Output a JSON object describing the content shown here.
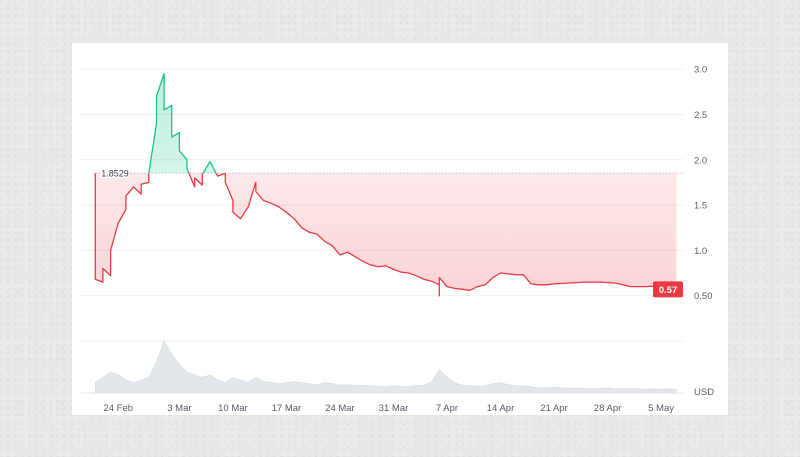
{
  "chart_data": {
    "type": "area",
    "title": "",
    "xlabel": "",
    "ylabel": "",
    "currency_label": "USD",
    "reference_value": 1.8529,
    "reference_label": "1.8529",
    "current_value": 0.57,
    "current_label": "0.57",
    "ylim": [
      0.0,
      3.2
    ],
    "y_ticks": [
      {
        "value": 3.0,
        "label": "3.0"
      },
      {
        "value": 2.5,
        "label": "2.5"
      },
      {
        "value": 2.0,
        "label": "2.0"
      },
      {
        "value": 1.5,
        "label": "1.5"
      },
      {
        "value": 1.0,
        "label": "1.0"
      },
      {
        "value": 0.5,
        "label": "0.50"
      }
    ],
    "x_domain": [
      "2024-02-19",
      "2024-05-08"
    ],
    "x_ticks": [
      {
        "date": "2024-02-24",
        "label": "24 Feb"
      },
      {
        "date": "2024-03-03",
        "label": "3 Mar"
      },
      {
        "date": "2024-03-10",
        "label": "10 Mar"
      },
      {
        "date": "2024-03-17",
        "label": "17 Mar"
      },
      {
        "date": "2024-03-24",
        "label": "24 Mar"
      },
      {
        "date": "2024-03-31",
        "label": "31 Mar"
      },
      {
        "date": "2024-04-07",
        "label": "7 Apr"
      },
      {
        "date": "2024-04-14",
        "label": "14 Apr"
      },
      {
        "date": "2024-04-21",
        "label": "21 Apr"
      },
      {
        "date": "2024-04-28",
        "label": "28 Apr"
      },
      {
        "date": "2024-05-05",
        "label": "5 May"
      }
    ],
    "series": [
      {
        "values": [
          [
            "2024-02-21",
            1.85
          ],
          [
            "2024-02-21",
            1.1
          ],
          [
            "2024-02-21",
            0.68
          ],
          [
            "2024-02-22",
            0.65
          ],
          [
            "2024-02-22",
            0.8
          ],
          [
            "2024-02-23",
            0.72
          ],
          [
            "2024-02-23",
            1.0
          ],
          [
            "2024-02-24",
            1.3
          ],
          [
            "2024-02-25",
            1.45
          ],
          [
            "2024-02-25",
            1.6
          ],
          [
            "2024-02-26",
            1.7
          ],
          [
            "2024-02-27",
            1.62
          ],
          [
            "2024-02-27",
            1.73
          ],
          [
            "2024-02-28",
            1.75
          ],
          [
            "2024-02-28",
            1.85
          ],
          [
            "2024-02-29",
            2.4
          ],
          [
            "2024-02-29",
            2.7
          ],
          [
            "2024-03-01",
            2.95
          ],
          [
            "2024-03-01",
            2.55
          ],
          [
            "2024-03-02",
            2.6
          ],
          [
            "2024-03-02",
            2.25
          ],
          [
            "2024-03-03",
            2.3
          ],
          [
            "2024-03-03",
            2.1
          ],
          [
            "2024-03-04",
            2.0
          ],
          [
            "2024-03-04",
            1.9
          ],
          [
            "2024-03-05",
            1.7
          ],
          [
            "2024-03-05",
            1.8
          ],
          [
            "2024-03-06",
            1.72
          ],
          [
            "2024-03-06",
            1.84
          ],
          [
            "2024-03-07",
            1.98
          ],
          [
            "2024-03-08",
            1.82
          ],
          [
            "2024-03-09",
            1.85
          ],
          [
            "2024-03-09",
            1.75
          ],
          [
            "2024-03-10",
            1.55
          ],
          [
            "2024-03-10",
            1.42
          ],
          [
            "2024-03-11",
            1.35
          ],
          [
            "2024-03-12",
            1.48
          ],
          [
            "2024-03-13",
            1.75
          ],
          [
            "2024-03-13",
            1.65
          ],
          [
            "2024-03-14",
            1.55
          ],
          [
            "2024-03-15",
            1.52
          ],
          [
            "2024-03-16",
            1.48
          ],
          [
            "2024-03-17",
            1.42
          ],
          [
            "2024-03-18",
            1.35
          ],
          [
            "2024-03-19",
            1.25
          ],
          [
            "2024-03-20",
            1.2
          ],
          [
            "2024-03-21",
            1.18
          ],
          [
            "2024-03-22",
            1.1
          ],
          [
            "2024-03-23",
            1.05
          ],
          [
            "2024-03-24",
            0.95
          ],
          [
            "2024-03-25",
            0.98
          ],
          [
            "2024-03-26",
            0.93
          ],
          [
            "2024-03-27",
            0.88
          ],
          [
            "2024-03-28",
            0.84
          ],
          [
            "2024-03-29",
            0.82
          ],
          [
            "2024-03-30",
            0.83
          ],
          [
            "2024-03-31",
            0.79
          ],
          [
            "2024-04-01",
            0.76
          ],
          [
            "2024-04-02",
            0.75
          ],
          [
            "2024-04-03",
            0.72
          ],
          [
            "2024-04-04",
            0.68
          ],
          [
            "2024-04-05",
            0.66
          ],
          [
            "2024-04-06",
            0.62
          ],
          [
            "2024-04-06",
            0.5
          ],
          [
            "2024-04-06",
            0.7
          ],
          [
            "2024-04-07",
            0.6
          ],
          [
            "2024-04-08",
            0.58
          ],
          [
            "2024-04-09",
            0.57
          ],
          [
            "2024-04-10",
            0.56
          ],
          [
            "2024-04-11",
            0.6
          ],
          [
            "2024-04-12",
            0.62
          ],
          [
            "2024-04-13",
            0.7
          ],
          [
            "2024-04-14",
            0.75
          ],
          [
            "2024-04-15",
            0.74
          ],
          [
            "2024-04-16",
            0.73
          ],
          [
            "2024-04-17",
            0.73
          ],
          [
            "2024-04-18",
            0.63
          ],
          [
            "2024-04-19",
            0.62
          ],
          [
            "2024-04-20",
            0.62
          ],
          [
            "2024-04-21",
            0.63
          ],
          [
            "2024-04-23",
            0.64
          ],
          [
            "2024-04-25",
            0.65
          ],
          [
            "2024-04-27",
            0.65
          ],
          [
            "2024-04-29",
            0.64
          ],
          [
            "2024-05-01",
            0.6
          ],
          [
            "2024-05-03",
            0.6
          ],
          [
            "2024-05-05",
            0.61
          ],
          [
            "2024-05-07",
            0.57
          ]
        ]
      }
    ],
    "volume": [
      [
        "2024-02-21",
        0.2
      ],
      [
        "2024-02-22",
        0.3
      ],
      [
        "2024-02-23",
        0.4
      ],
      [
        "2024-02-24",
        0.35
      ],
      [
        "2024-02-25",
        0.25
      ],
      [
        "2024-02-26",
        0.2
      ],
      [
        "2024-02-27",
        0.25
      ],
      [
        "2024-02-28",
        0.3
      ],
      [
        "2024-02-29",
        0.6
      ],
      [
        "2024-03-01",
        1.0
      ],
      [
        "2024-03-02",
        0.75
      ],
      [
        "2024-03-03",
        0.55
      ],
      [
        "2024-03-04",
        0.4
      ],
      [
        "2024-03-05",
        0.35
      ],
      [
        "2024-03-06",
        0.3
      ],
      [
        "2024-03-07",
        0.35
      ],
      [
        "2024-03-08",
        0.25
      ],
      [
        "2024-03-09",
        0.2
      ],
      [
        "2024-03-10",
        0.3
      ],
      [
        "2024-03-11",
        0.25
      ],
      [
        "2024-03-12",
        0.2
      ],
      [
        "2024-03-13",
        0.3
      ],
      [
        "2024-03-14",
        0.22
      ],
      [
        "2024-03-15",
        0.2
      ],
      [
        "2024-03-16",
        0.18
      ],
      [
        "2024-03-17",
        0.2
      ],
      [
        "2024-03-18",
        0.22
      ],
      [
        "2024-03-19",
        0.2
      ],
      [
        "2024-03-20",
        0.18
      ],
      [
        "2024-03-21",
        0.16
      ],
      [
        "2024-03-22",
        0.2
      ],
      [
        "2024-03-23",
        0.18
      ],
      [
        "2024-03-24",
        0.15
      ],
      [
        "2024-03-25",
        0.16
      ],
      [
        "2024-03-26",
        0.14
      ],
      [
        "2024-03-27",
        0.15
      ],
      [
        "2024-03-28",
        0.14
      ],
      [
        "2024-03-29",
        0.13
      ],
      [
        "2024-03-30",
        0.12
      ],
      [
        "2024-03-31",
        0.14
      ],
      [
        "2024-04-01",
        0.13
      ],
      [
        "2024-04-02",
        0.12
      ],
      [
        "2024-04-03",
        0.14
      ],
      [
        "2024-04-04",
        0.15
      ],
      [
        "2024-04-05",
        0.22
      ],
      [
        "2024-04-06",
        0.45
      ],
      [
        "2024-04-07",
        0.3
      ],
      [
        "2024-04-08",
        0.2
      ],
      [
        "2024-04-09",
        0.15
      ],
      [
        "2024-04-10",
        0.14
      ],
      [
        "2024-04-11",
        0.13
      ],
      [
        "2024-04-12",
        0.14
      ],
      [
        "2024-04-13",
        0.18
      ],
      [
        "2024-04-14",
        0.2
      ],
      [
        "2024-04-15",
        0.16
      ],
      [
        "2024-04-16",
        0.14
      ],
      [
        "2024-04-17",
        0.13
      ],
      [
        "2024-04-18",
        0.12
      ],
      [
        "2024-04-19",
        0.1
      ],
      [
        "2024-04-20",
        0.1
      ],
      [
        "2024-04-21",
        0.11
      ],
      [
        "2024-04-22",
        0.1
      ],
      [
        "2024-04-23",
        0.09
      ],
      [
        "2024-04-24",
        0.1
      ],
      [
        "2024-04-25",
        0.09
      ],
      [
        "2024-04-26",
        0.08
      ],
      [
        "2024-04-27",
        0.09
      ],
      [
        "2024-04-28",
        0.1
      ],
      [
        "2024-04-29",
        0.08
      ],
      [
        "2024-04-30",
        0.08
      ],
      [
        "2024-05-01",
        0.09
      ],
      [
        "2024-05-02",
        0.08
      ],
      [
        "2024-05-03",
        0.07
      ],
      [
        "2024-05-04",
        0.08
      ],
      [
        "2024-05-05",
        0.07
      ],
      [
        "2024-05-06",
        0.08
      ],
      [
        "2024-05-07",
        0.07
      ]
    ],
    "grid": true,
    "colors": {
      "up": "#16c784",
      "down": "#ea3943",
      "up_fill": "#16c784",
      "down_fill": "#ea3943",
      "grid": "#eef0f2",
      "reference_line": "#b8bdc4",
      "volume": "#e3e6ea",
      "badge": "#ea3943"
    }
  }
}
